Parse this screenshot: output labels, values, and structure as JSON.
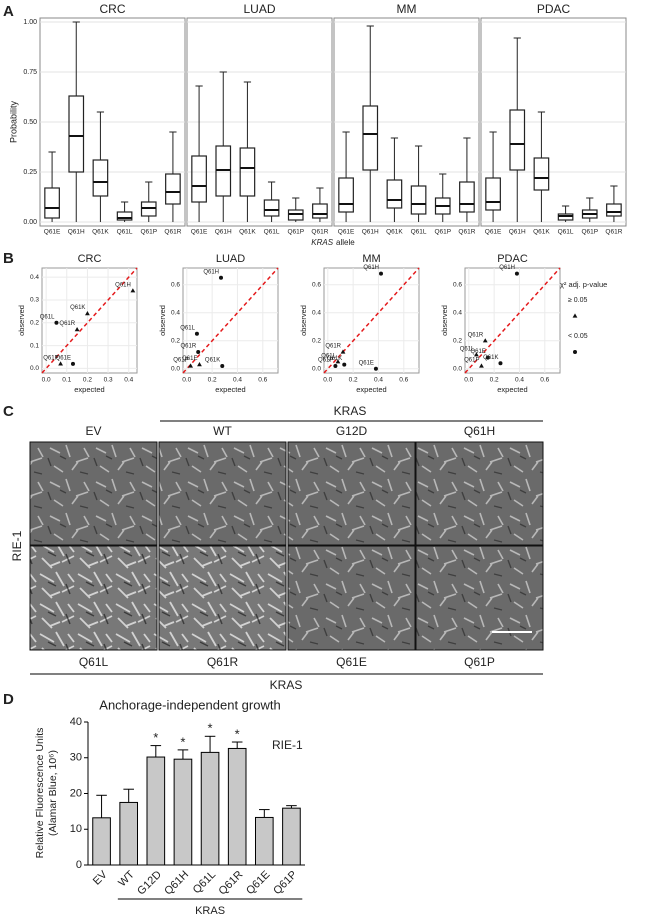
{
  "panel_labels": [
    "A",
    "B",
    "C",
    "D"
  ],
  "chart_data": [
    {
      "type": "box",
      "title": "CRC",
      "ylabel": "Probability",
      "xlabel_italic": "KRAS",
      "xlabel": "allele",
      "categories": [
        "Q61E",
        "Q61H",
        "Q61K",
        "Q61L",
        "Q61P",
        "Q61R"
      ],
      "boxes": [
        {
          "low": 0,
          "q1": 0.02,
          "median": 0.07,
          "q3": 0.17,
          "high": 0.35
        },
        {
          "low": 0,
          "q1": 0.25,
          "median": 0.43,
          "q3": 0.63,
          "high": 1.0
        },
        {
          "low": 0,
          "q1": 0.13,
          "median": 0.2,
          "q3": 0.31,
          "high": 0.55
        },
        {
          "low": 0,
          "q1": 0.01,
          "median": 0.02,
          "q3": 0.05,
          "high": 0.1
        },
        {
          "low": 0,
          "q1": 0.03,
          "median": 0.07,
          "q3": 0.1,
          "high": 0.2
        },
        {
          "low": 0,
          "q1": 0.09,
          "median": 0.15,
          "q3": 0.24,
          "high": 0.45
        }
      ],
      "ylim": [
        -0.02,
        1.02
      ],
      "yticks": [
        {
          "value": 0,
          "label": "0.00"
        },
        {
          "value": 0.25,
          "label": "0.25"
        },
        {
          "value": 0.5,
          "label": "0.50"
        },
        {
          "value": 0.75,
          "label": "0.75"
        },
        {
          "value": 1,
          "label": "1.00"
        }
      ],
      "grid": true
    },
    {
      "type": "box",
      "title": "LUAD",
      "categories": [
        "Q61E",
        "Q61H",
        "Q61K",
        "Q61L",
        "Q61P",
        "Q61R"
      ],
      "boxes": [
        {
          "low": 0,
          "q1": 0.1,
          "median": 0.18,
          "q3": 0.33,
          "high": 0.68
        },
        {
          "low": 0,
          "q1": 0.13,
          "median": 0.26,
          "q3": 0.38,
          "high": 0.75
        },
        {
          "low": 0,
          "q1": 0.13,
          "median": 0.27,
          "q3": 0.37,
          "high": 0.7
        },
        {
          "low": 0,
          "q1": 0.03,
          "median": 0.06,
          "q3": 0.11,
          "high": 0.2
        },
        {
          "low": 0,
          "q1": 0.01,
          "median": 0.04,
          "q3": 0.06,
          "high": 0.12
        },
        {
          "low": 0,
          "q1": 0.02,
          "median": 0.04,
          "q3": 0.09,
          "high": 0.17
        }
      ],
      "ylim": [
        -0.02,
        1.02
      ],
      "grid": true
    },
    {
      "type": "box",
      "title": "MM",
      "categories": [
        "Q61E",
        "Q61H",
        "Q61K",
        "Q61L",
        "Q61P",
        "Q61R"
      ],
      "boxes": [
        {
          "low": 0,
          "q1": 0.05,
          "median": 0.09,
          "q3": 0.22,
          "high": 0.45
        },
        {
          "low": 0,
          "q1": 0.26,
          "median": 0.44,
          "q3": 0.58,
          "high": 0.98
        },
        {
          "low": 0,
          "q1": 0.07,
          "median": 0.11,
          "q3": 0.21,
          "high": 0.42
        },
        {
          "low": 0,
          "q1": 0.04,
          "median": 0.09,
          "q3": 0.18,
          "high": 0.38
        },
        {
          "low": 0,
          "q1": 0.04,
          "median": 0.08,
          "q3": 0.12,
          "high": 0.24
        },
        {
          "low": 0,
          "q1": 0.05,
          "median": 0.09,
          "q3": 0.2,
          "high": 0.42
        }
      ],
      "ylim": [
        -0.02,
        1.02
      ],
      "grid": true
    },
    {
      "type": "box",
      "title": "PDAC",
      "categories": [
        "Q61E",
        "Q61H",
        "Q61K",
        "Q61L",
        "Q61P",
        "Q61R"
      ],
      "boxes": [
        {
          "low": 0,
          "q1": 0.06,
          "median": 0.1,
          "q3": 0.22,
          "high": 0.45
        },
        {
          "low": 0,
          "q1": 0.26,
          "median": 0.39,
          "q3": 0.56,
          "high": 0.92
        },
        {
          "low": 0,
          "q1": 0.16,
          "median": 0.22,
          "q3": 0.32,
          "high": 0.55
        },
        {
          "low": 0,
          "q1": 0.01,
          "median": 0.03,
          "q3": 0.04,
          "high": 0.08
        },
        {
          "low": 0,
          "q1": 0.02,
          "median": 0.04,
          "q3": 0.06,
          "high": 0.12
        },
        {
          "low": 0,
          "q1": 0.03,
          "median": 0.05,
          "q3": 0.09,
          "high": 0.18
        }
      ],
      "ylim": [
        -0.02,
        1.02
      ],
      "grid": true
    },
    {
      "type": "scatter",
      "title": "CRC",
      "xlabel": "expected",
      "ylabel": "observed",
      "line_color": "#e41a1c",
      "x": [
        0.42,
        0.05,
        0.2,
        0.15,
        0.07,
        0.13
      ],
      "y": [
        0.34,
        0.2,
        0.24,
        0.17,
        0.02,
        0.02
      ],
      "labels": [
        "Q61H",
        "Q61L",
        "Q61K",
        "Q61R",
        "Q61P",
        "Q61E"
      ],
      "markers": [
        "triangle",
        "circle",
        "triangle",
        "triangle",
        "triangle",
        "circle"
      ],
      "xlim": [
        -0.02,
        0.44
      ],
      "ylim": [
        -0.02,
        0.44
      ],
      "xticks": [
        {
          "value": 0,
          "label": "0.0"
        },
        0.1,
        0.2,
        0.3,
        0.4
      ],
      "yticks": [
        {
          "value": 0,
          "label": "0.0"
        },
        0.1,
        0.2,
        0.3,
        0.4
      ],
      "grid": true
    },
    {
      "type": "scatter",
      "title": "LUAD",
      "xlabel": "expected",
      "ylabel": "observed",
      "line_color": "#e41a1c",
      "x": [
        0.27,
        0.08,
        0.09,
        0.03,
        0.1,
        0.28
      ],
      "y": [
        0.65,
        0.25,
        0.12,
        0.02,
        0.03,
        0.02
      ],
      "labels": [
        "Q61H",
        "Q61L",
        "Q61R",
        "Q61P",
        "Q61E",
        "Q61K"
      ],
      "markers": [
        "circle",
        "circle",
        "circle",
        "triangle",
        "triangle",
        "circle"
      ],
      "xlim": [
        -0.03,
        0.72
      ],
      "ylim": [
        -0.03,
        0.72
      ],
      "xticks": [
        {
          "value": 0,
          "label": "0.0"
        },
        0.2,
        0.4,
        0.6
      ],
      "yticks": [
        {
          "value": 0,
          "label": "0.0"
        },
        0.2,
        0.4,
        0.6
      ],
      "grid": true
    },
    {
      "type": "scatter",
      "title": "MM",
      "xlabel": "expected",
      "ylabel": "observed",
      "line_color": "#e41a1c",
      "x": [
        0.42,
        0.12,
        0.08,
        0.06,
        0.13,
        0.38
      ],
      "y": [
        0.68,
        0.12,
        0.05,
        0.02,
        0.03,
        0.0
      ],
      "labels": [
        "Q61H",
        "Q61R",
        "Q61L",
        "Q61P",
        "Q61K",
        "Q61E"
      ],
      "markers": [
        "circle",
        "triangle",
        "triangle",
        "circle",
        "circle",
        "circle"
      ],
      "xlim": [
        -0.03,
        0.72
      ],
      "ylim": [
        -0.03,
        0.72
      ],
      "xticks": [
        {
          "value": 0,
          "label": "0.0"
        },
        0.2,
        0.4,
        0.6
      ],
      "yticks": [
        {
          "value": 0,
          "label": "0.0"
        },
        0.2,
        0.4,
        0.6
      ],
      "grid": true
    },
    {
      "type": "scatter",
      "title": "PDAC",
      "xlabel": "expected",
      "ylabel": "observed",
      "line_color": "#e41a1c",
      "x": [
        0.38,
        0.13,
        0.06,
        0.15,
        0.1,
        0.25
      ],
      "y": [
        0.68,
        0.2,
        0.1,
        0.08,
        0.02,
        0.04
      ],
      "labels": [
        "Q61H",
        "Q61R",
        "Q61L",
        "Q61E",
        "Q61P",
        "Q61K"
      ],
      "markers": [
        "circle",
        "triangle",
        "triangle",
        "circle",
        "triangle",
        "circle"
      ],
      "xlim": [
        -0.03,
        0.72
      ],
      "ylim": [
        -0.03,
        0.72
      ],
      "xticks": [
        {
          "value": 0,
          "label": "0.0"
        },
        0.2,
        0.4,
        0.6
      ],
      "yticks": [
        {
          "value": 0,
          "label": "0.0"
        },
        0.2,
        0.4,
        0.6
      ],
      "grid": true,
      "legend_title": "χ² adj. p-value",
      "legend": [
        {
          "label": "≥ 0.05",
          "marker": "triangle"
        },
        {
          "label": "< 0.05",
          "marker": "circle"
        }
      ]
    },
    {
      "type": "bar",
      "title": "Anchorage-independent growth",
      "ylabel": [
        "Relative Fluorescence Units",
        "(Alamar Blue, 10⁶)"
      ],
      "annotation": "RIE-1",
      "categories": [
        "EV",
        "WT",
        "G12D",
        "Q61H",
        "Q61L",
        "Q61R",
        "Q61E",
        "Q61P"
      ],
      "values": [
        13.2,
        17.5,
        30.2,
        29.6,
        31.5,
        32.6,
        13.3,
        15.9
      ],
      "errors": [
        6.3,
        3.7,
        3.2,
        2.6,
        4.5,
        1.8,
        2.2,
        0.7
      ],
      "significance": [
        null,
        null,
        "*",
        "*",
        "*",
        "*",
        null,
        null
      ],
      "in_group": [
        false,
        true,
        true,
        true,
        true,
        true,
        true,
        true
      ],
      "group_label": "KRAS",
      "color": "#c8c8c8",
      "ylim": [
        0,
        40
      ],
      "yticks": [
        0,
        10,
        20,
        30,
        40
      ]
    }
  ],
  "image_panel": {
    "header": "KRAS",
    "top_labels": [
      "EV",
      "WT",
      "G12D",
      "Q61H"
    ],
    "row_label": "RIE-1",
    "bottom_labels": [
      "Q61L",
      "Q61R",
      "Q61E",
      "Q61P"
    ],
    "footer": "KRAS"
  }
}
